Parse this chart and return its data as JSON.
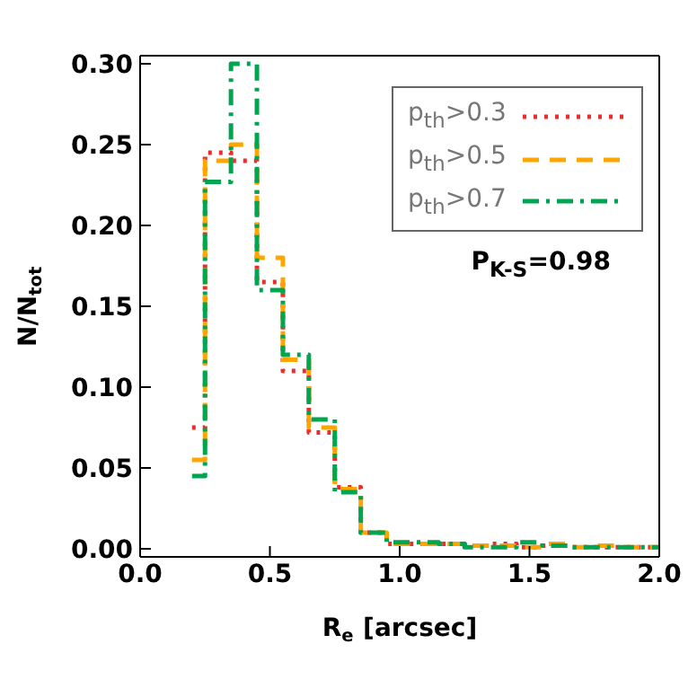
{
  "chart_data": {
    "type": "histogram",
    "xlabel": "R$_{e}$ [arcsec]",
    "ylabel": "N/N$_{tot}$",
    "annotations": [
      "P$_{K-S}$=0.98"
    ],
    "bins": [
      0.2,
      0.25,
      0.35,
      0.45,
      0.55,
      0.65,
      0.75,
      0.85,
      0.95,
      1.05,
      1.15,
      1.25,
      1.35,
      1.45,
      1.55,
      1.65,
      1.75,
      1.85,
      1.95,
      2.0
    ],
    "series": [
      {
        "name": "p$_{th}$>0.3",
        "color": "#ee2c2c",
        "line_style": "dotted",
        "values": [
          0.075,
          0.245,
          0.24,
          0.165,
          0.11,
          0.072,
          0.038,
          0.01,
          0.003,
          0.003,
          0.003,
          0.002,
          0.003,
          0.001,
          0.002,
          0.001,
          0.001,
          0.001,
          0.001
        ]
      },
      {
        "name": "p$_{th}$>0.5",
        "color": "#ffa500",
        "line_style": "dashed",
        "values": [
          0.055,
          0.24,
          0.25,
          0.18,
          0.117,
          0.075,
          0.037,
          0.01,
          0.003,
          0.003,
          0.003,
          0.002,
          0.002,
          0.001,
          0.003,
          0.001,
          0.002,
          0.001,
          0.001
        ]
      },
      {
        "name": "p$_{th}$>0.7",
        "color": "#00a550",
        "line_style": "dashdot",
        "values": [
          0.045,
          0.227,
          0.3,
          0.16,
          0.12,
          0.08,
          0.035,
          0.01,
          0.004,
          0.004,
          0.003,
          0.001,
          0.001,
          0.004,
          0.002,
          0.001,
          0.001,
          0.001,
          0.001
        ]
      }
    ],
    "xlim": [
      0.0,
      2.0
    ],
    "xticks": [
      {
        "value": 0,
        "label": "0.0"
      },
      {
        "value": 0.5,
        "label": "0.5"
      },
      {
        "value": 1,
        "label": "1.0"
      },
      {
        "value": 1.5,
        "label": "1.5"
      },
      {
        "value": 2,
        "label": "2.0"
      }
    ],
    "ylim": [
      -0.005,
      0.305
    ],
    "yticks": [
      {
        "value": 0,
        "label": "0.00"
      },
      {
        "value": 0.05,
        "label": "0.05"
      },
      {
        "value": 0.1,
        "label": "0.10"
      },
      {
        "value": 0.15,
        "label": "0.15"
      },
      {
        "value": 0.2,
        "label": "0.20"
      },
      {
        "value": 0.25,
        "label": "0.25"
      },
      {
        "value": 0.3,
        "label": "0.30"
      }
    ],
    "legend": "top right",
    "grid": false
  }
}
